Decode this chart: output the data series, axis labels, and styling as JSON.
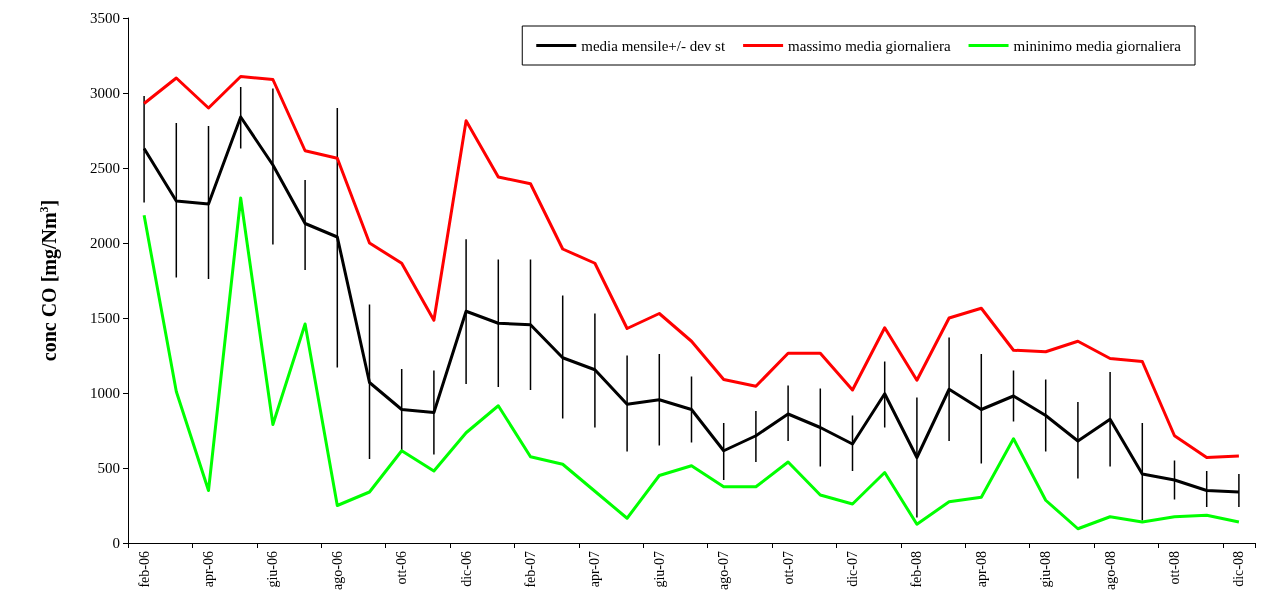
{
  "chart_data": {
    "type": "line",
    "ylabel": "conc CO [mg/Nm$^{3}$]",
    "categories": [
      "feb-06",
      null,
      "apr-06",
      null,
      "giu-06",
      null,
      "ago-06",
      null,
      "ott-06",
      null,
      "dic-06",
      null,
      "feb-07",
      null,
      "apr-07",
      null,
      "giu-07",
      null,
      "ago-07",
      null,
      "ott-07",
      null,
      "dic-07",
      null,
      "feb-08",
      null,
      "apr-08",
      null,
      "giu-08",
      null,
      "ago-08",
      null,
      "ott-08",
      null,
      "dic-08"
    ],
    "series": [
      {
        "name": "media mensile+/- dev st",
        "color": "#000000",
        "values": [
          2630,
          2280,
          2260,
          2840,
          2520,
          2130,
          2040,
          1070,
          890,
          870,
          1545,
          1465,
          1455,
          1235,
          1155,
          925,
          955,
          890,
          615,
          715,
          860,
          770,
          660,
          995,
          570,
          1025,
          890,
          980,
          850,
          680,
          825,
          460,
          420,
          350,
          340
        ],
        "errors": [
          [
            2270,
            2980
          ],
          [
            1770,
            2800
          ],
          [
            1760,
            2780
          ],
          [
            2630,
            3040
          ],
          [
            1990,
            3030
          ],
          [
            1820,
            2420
          ],
          [
            1170,
            2900
          ],
          [
            560,
            1590
          ],
          [
            620,
            1160
          ],
          [
            590,
            1150
          ],
          [
            1060,
            2025
          ],
          [
            1040,
            1890
          ],
          [
            1020,
            1890
          ],
          [
            830,
            1650
          ],
          [
            770,
            1530
          ],
          [
            610,
            1250
          ],
          [
            650,
            1260
          ],
          [
            670,
            1110
          ],
          [
            420,
            800
          ],
          [
            540,
            880
          ],
          [
            680,
            1050
          ],
          [
            510,
            1030
          ],
          [
            480,
            850
          ],
          [
            770,
            1210
          ],
          [
            170,
            970
          ],
          [
            680,
            1370
          ],
          [
            530,
            1260
          ],
          [
            810,
            1150
          ],
          [
            610,
            1090
          ],
          [
            430,
            940
          ],
          [
            510,
            1140
          ],
          [
            150,
            800
          ],
          [
            290,
            550
          ],
          [
            240,
            480
          ],
          [
            240,
            460
          ]
        ]
      },
      {
        "name": "massimo media giornaliera",
        "color": "#ff0000",
        "values": [
          2930,
          3100,
          2900,
          3110,
          3090,
          2615,
          2565,
          2000,
          1865,
          1485,
          2815,
          2440,
          2395,
          1960,
          1865,
          1430,
          1530,
          1345,
          1090,
          1045,
          1265,
          1265,
          1020,
          1435,
          1085,
          1500,
          1565,
          1285,
          1275,
          1345,
          1230,
          1210,
          715,
          570,
          580
        ]
      },
      {
        "name": "mininimo media giornaliera",
        "color": "#00ff00",
        "values": [
          2185,
          1010,
          350,
          2300,
          790,
          1460,
          250,
          340,
          615,
          480,
          735,
          915,
          575,
          525,
          345,
          165,
          450,
          515,
          375,
          375,
          540,
          320,
          260,
          470,
          125,
          275,
          305,
          695,
          285,
          95,
          175,
          140,
          175,
          185,
          140
        ]
      }
    ],
    "ylim": [
      0,
      3500
    ],
    "yticks": [
      0,
      500,
      1000,
      1500,
      2000,
      2500,
      3000,
      3500
    ],
    "grid": false,
    "legend": "top right",
    "marker": "none",
    "line_style": "solid"
  }
}
